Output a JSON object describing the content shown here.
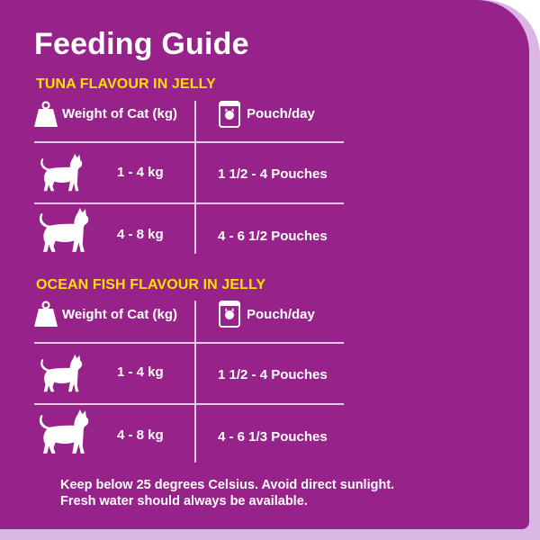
{
  "title": "Feeding Guide",
  "sections": [
    {
      "heading": "TUNA FLAVOUR IN JELLY",
      "col_weight": "Weight of Cat (kg)",
      "col_pouch": "Pouch/day",
      "rows": [
        {
          "weight": "1 - 4 kg",
          "amount": "1 1/2 - 4 Pouches"
        },
        {
          "weight": "4 - 8 kg",
          "amount": "4 - 6 1/2 Pouches"
        }
      ]
    },
    {
      "heading": "OCEAN FISH FLAVOUR IN JELLY",
      "col_weight": "Weight of Cat (kg)",
      "col_pouch": "Pouch/day",
      "rows": [
        {
          "weight": "1 - 4 kg",
          "amount": "1 1/2 - 4 Pouches"
        },
        {
          "weight": "4 - 8 kg",
          "amount": "4 - 6 1/3 Pouches"
        }
      ]
    }
  ],
  "note_line1": "Keep below 25 degrees Celsius.  Avoid direct sunlight.",
  "note_line2": "Fresh water should always be available.",
  "colors": {
    "background": "#97238a",
    "accent": "#ffe000",
    "border": "#d9b6e4"
  },
  "icons": [
    "weight-icon",
    "pouch-icon",
    "small-cat-icon",
    "large-cat-icon"
  ]
}
